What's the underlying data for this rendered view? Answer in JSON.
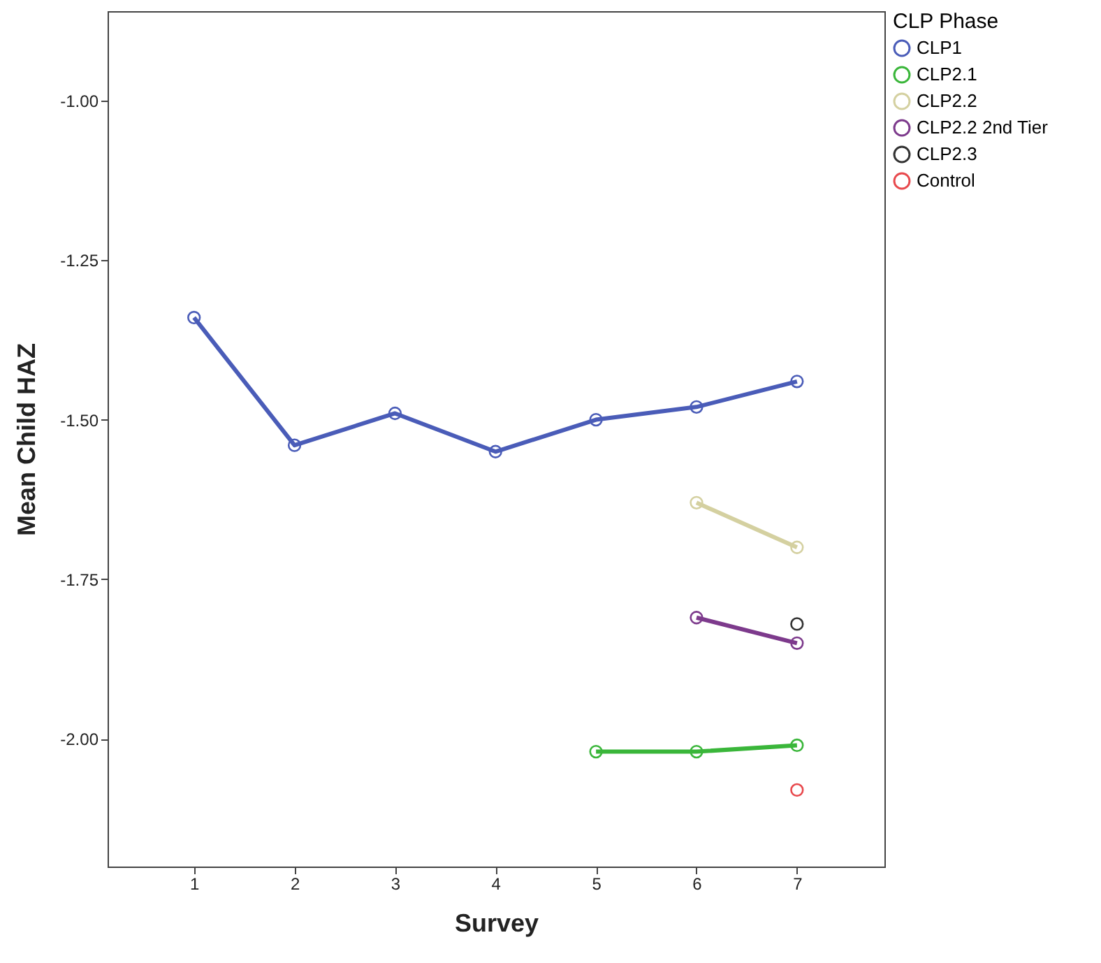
{
  "chart_data": {
    "type": "line",
    "xlabel": "Survey",
    "ylabel": "Mean Child HAZ",
    "legend_title": "CLP Phase",
    "x": [
      1,
      2,
      3,
      4,
      5,
      6,
      7
    ],
    "series": [
      {
        "name": "CLP1",
        "color": "#4a5cb8",
        "values": [
          -1.34,
          -1.54,
          -1.49,
          -1.55,
          -1.5,
          -1.48,
          -1.44
        ]
      },
      {
        "name": "CLP2.1",
        "color": "#3ab63a",
        "values": [
          null,
          null,
          null,
          null,
          -2.02,
          -2.02,
          -2.01
        ]
      },
      {
        "name": "CLP2.2",
        "color": "#d4d0a0",
        "values": [
          null,
          null,
          null,
          null,
          null,
          -1.63,
          -1.7
        ]
      },
      {
        "name": "CLP2.2 2nd Tier",
        "color": "#7d3a8c",
        "values": [
          null,
          null,
          null,
          null,
          null,
          -1.81,
          -1.85
        ]
      },
      {
        "name": "CLP2.3",
        "color": "#333333",
        "values": [
          null,
          null,
          null,
          null,
          null,
          null,
          -1.82
        ]
      },
      {
        "name": "Control",
        "color": "#e8494d",
        "values": [
          null,
          null,
          null,
          null,
          null,
          null,
          -2.08
        ]
      }
    ],
    "xlim": [
      0.14,
      7.87
    ],
    "xticks": [
      1,
      2,
      3,
      4,
      5,
      6,
      7
    ],
    "ylim": [
      -2.2,
      -0.86
    ],
    "yticks": [
      {
        "value": -2,
        "label": "-2.00"
      },
      {
        "value": -1.75,
        "label": "-1.75"
      },
      {
        "value": -1.5,
        "label": "-1.50"
      },
      {
        "value": -1.25,
        "label": "-1.25"
      },
      {
        "value": -1,
        "label": "-1.00"
      }
    ],
    "grid": false,
    "legend": "top right",
    "marker": "circle",
    "line_style": "solid"
  }
}
